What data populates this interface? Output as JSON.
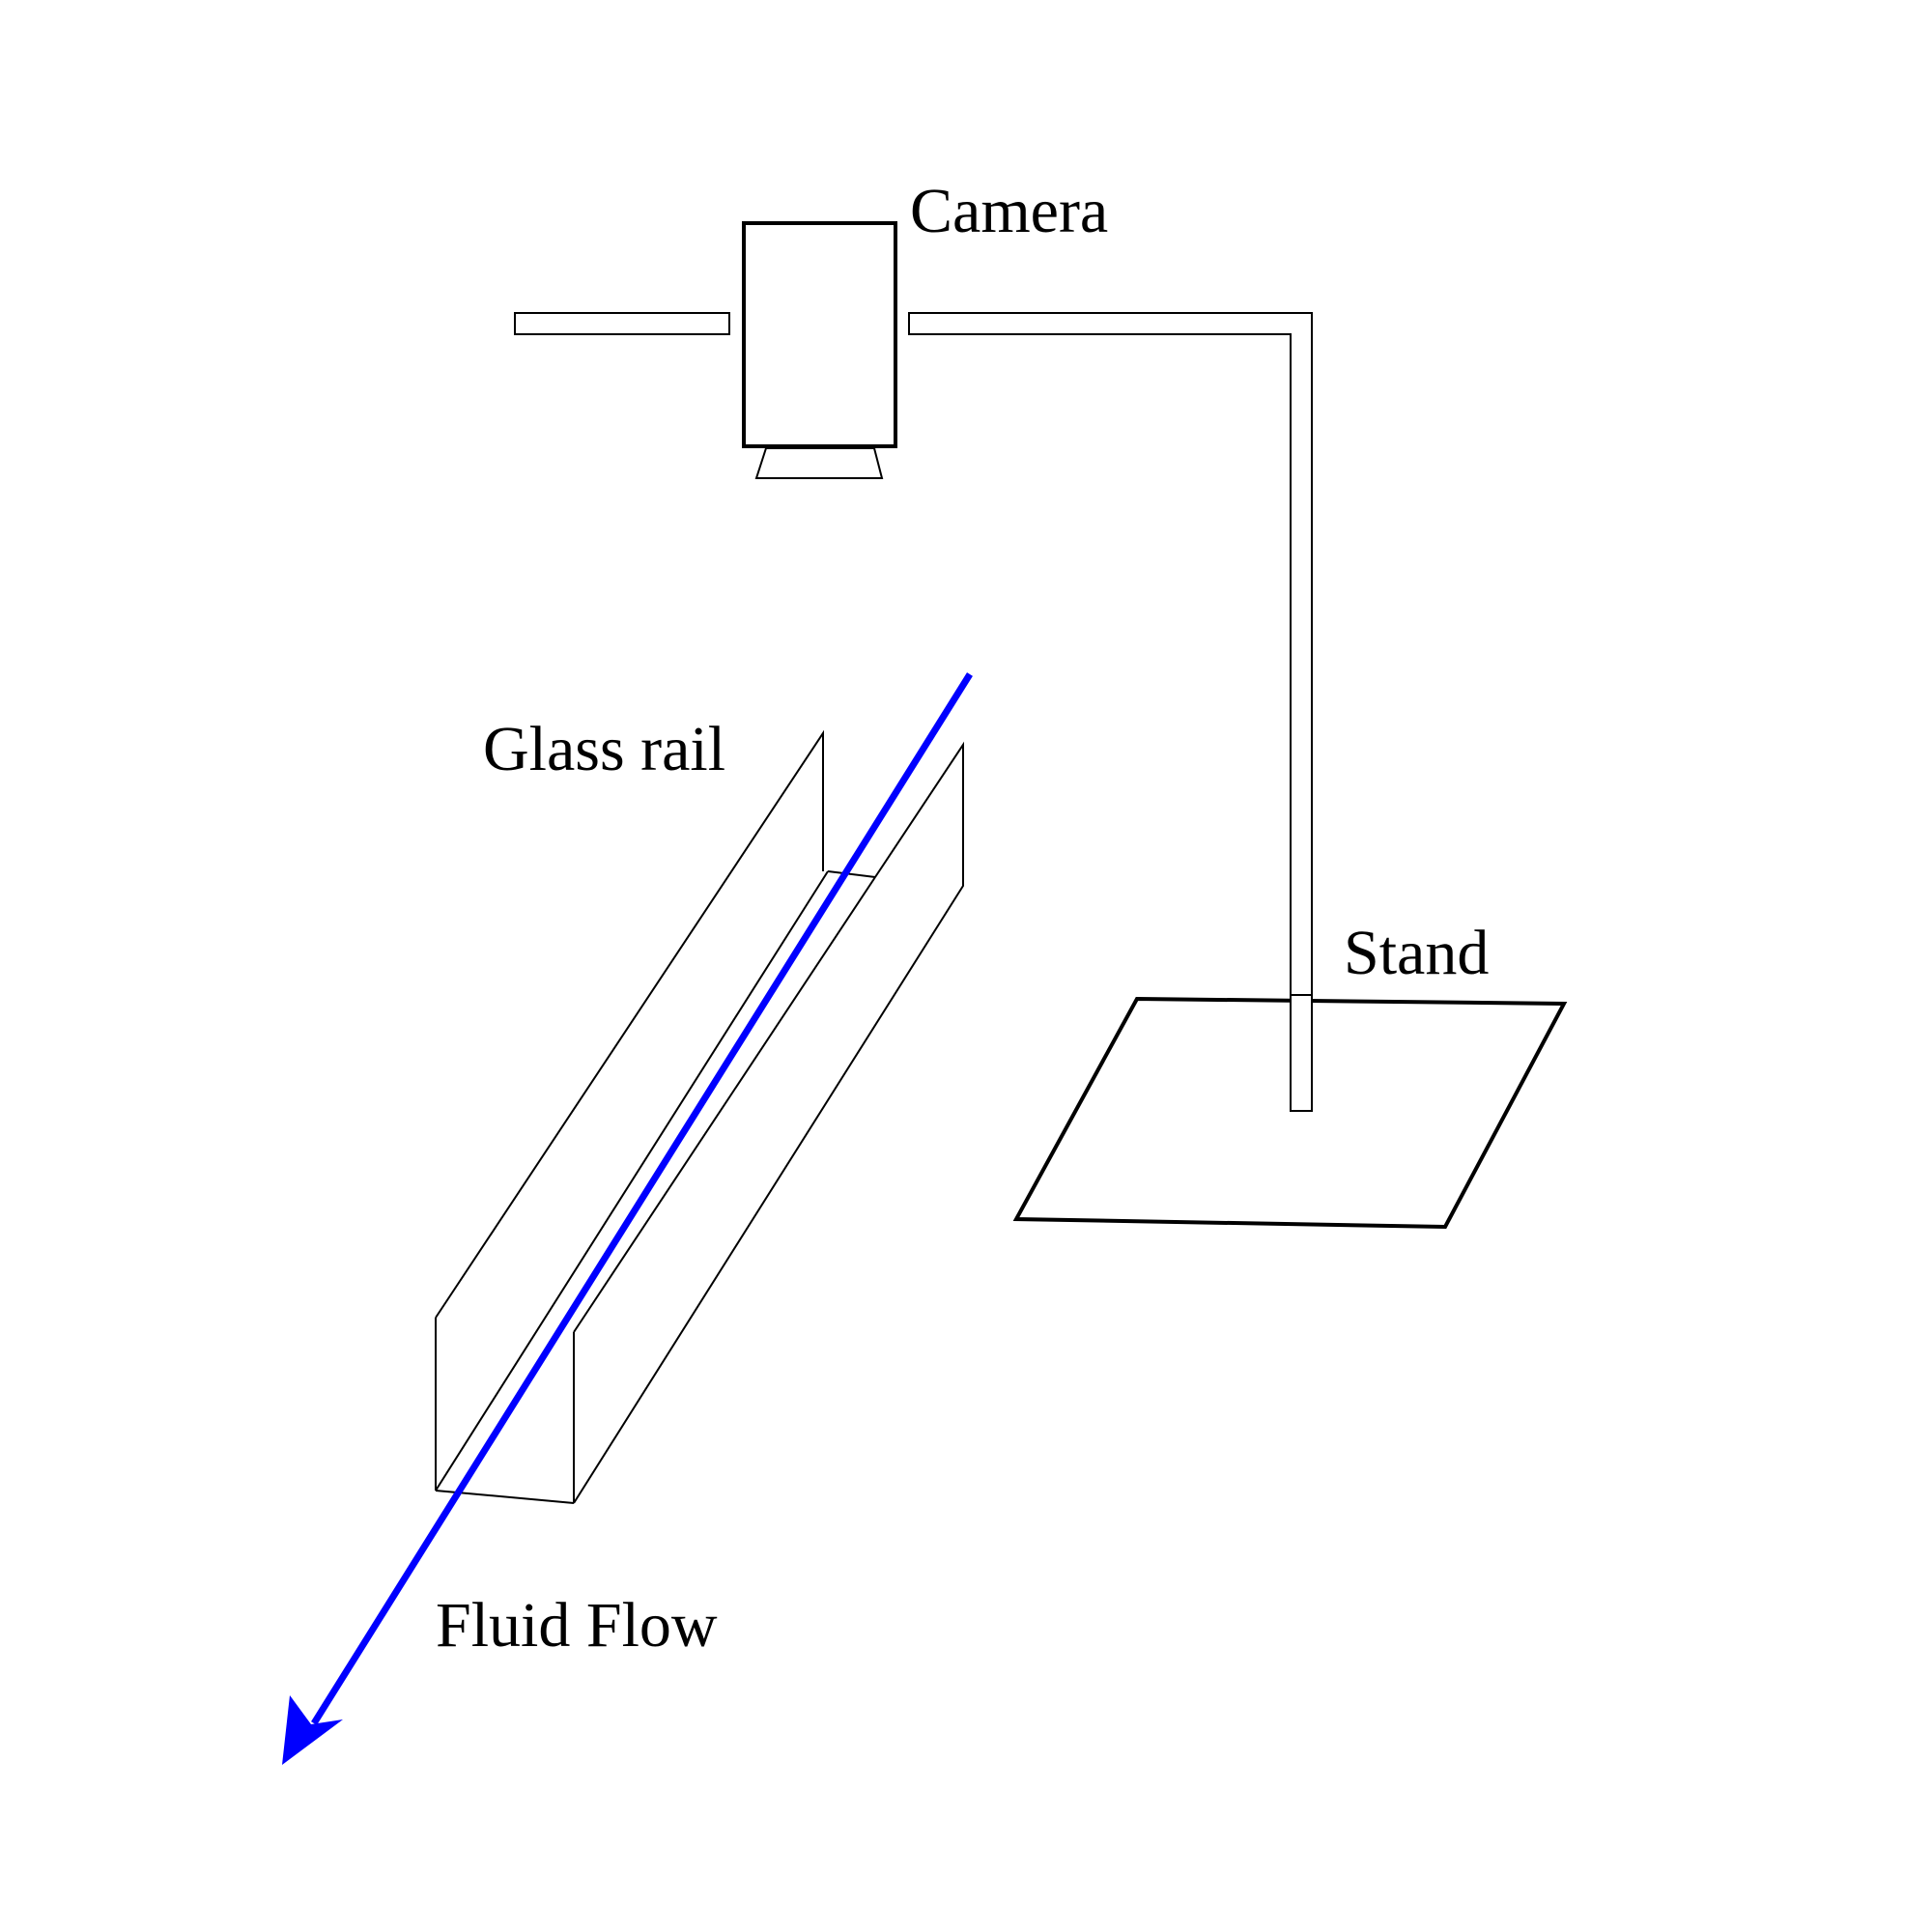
{
  "labels": {
    "camera": "Camera",
    "glass_rail": "Glass rail",
    "stand": "Stand",
    "fluid_flow": "Fluid Flow"
  },
  "colors": {
    "flow_arrow": "#0000ff",
    "lines": "#000000",
    "background": "#ffffff"
  }
}
